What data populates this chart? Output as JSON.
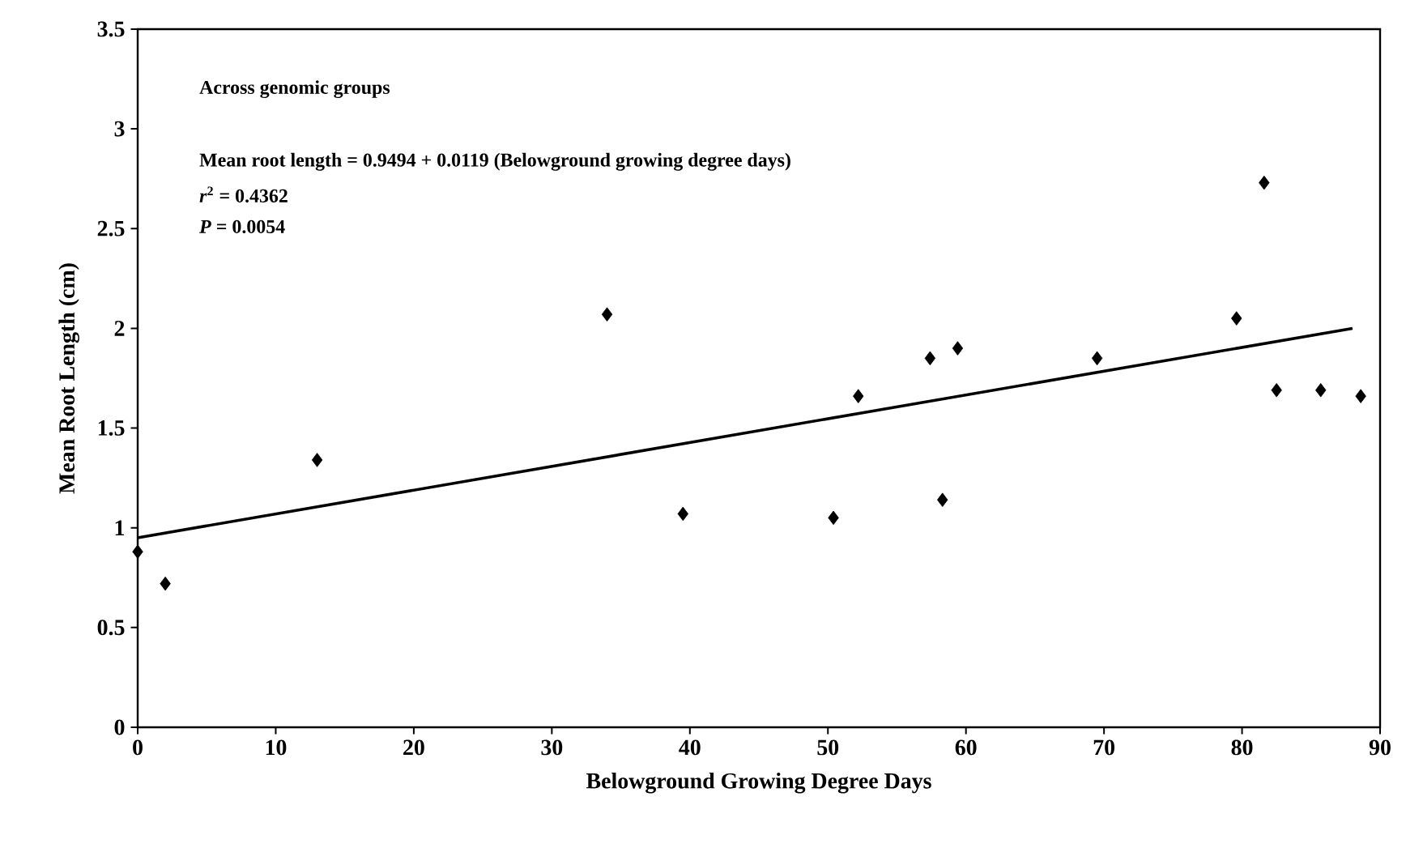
{
  "chart_data": {
    "type": "scatter",
    "xlabel": "Belowground Growing Degree Days",
    "ylabel": "Mean Root Length (cm)",
    "xlim": [
      0,
      90
    ],
    "ylim": [
      0,
      3.5
    ],
    "xticks": [
      0,
      10,
      20,
      30,
      40,
      50,
      60,
      70,
      80,
      90
    ],
    "yticks": [
      0,
      0.5,
      1,
      1.5,
      2,
      2.5,
      3,
      3.5
    ],
    "grid": false,
    "marker": "diamond",
    "annotations": [
      "Across genomic groups",
      "Mean root length = 0.9494 + 0.0119 (Belowground growing degree days)",
      "*r*$^{2}$ = 0.4362",
      "*P* = 0.0054"
    ],
    "series": [
      {
        "color": "#000000",
        "x": [
          0,
          2,
          13,
          34,
          39.5,
          50.4,
          52.2,
          57.4,
          58.3,
          59.4,
          69.5,
          79.6,
          81.6,
          82.5,
          85.7,
          88.6
        ],
        "values": [
          0.88,
          0.72,
          1.34,
          2.07,
          1.07,
          1.05,
          1.66,
          1.85,
          1.14,
          1.9,
          1.85,
          2.05,
          2.73,
          1.69,
          1.69,
          1.66
        ]
      },
      {
        "type": "line",
        "color": "#000000",
        "marker": "none",
        "line_style": "solid",
        "x": [
          0,
          88
        ],
        "values": [
          0.95,
          2.0
        ]
      }
    ]
  }
}
